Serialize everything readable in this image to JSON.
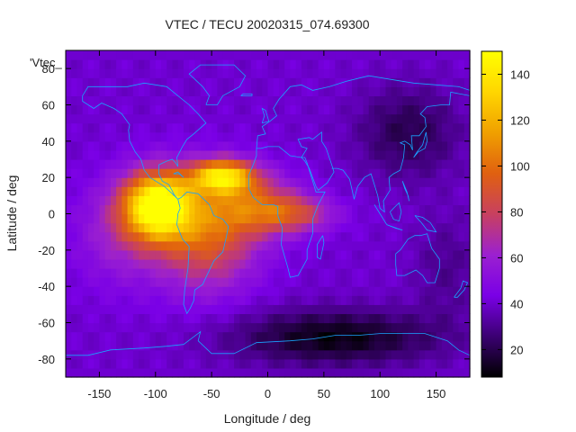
{
  "chart_data": {
    "type": "heatmap",
    "title": "VTEC / TECU 20020315_074.69300",
    "xlabel": "Longitude / deg",
    "ylabel": "Latitude / deg",
    "xlim": [
      -180,
      180
    ],
    "ylim": [
      -90,
      90
    ],
    "x_ticks": [
      "-150",
      "-100",
      "-50",
      "0",
      "50",
      "100",
      "150"
    ],
    "y_ticks": [
      "80",
      "60",
      "40",
      "20",
      "0",
      "-20",
      "-40",
      "-60",
      "-80"
    ],
    "legend_entries": [
      "'Vtec_"
    ],
    "colorbar": {
      "range": [
        8,
        150
      ],
      "ticks": [
        "20",
        "40",
        "60",
        "80",
        "100",
        "120",
        "140"
      ],
      "palette": [
        "#000000",
        "#3b0072",
        "#7a00e6",
        "#9b20d0",
        "#c84060",
        "#e06010",
        "#f0a000",
        "#ffd600",
        "#ffff00"
      ]
    },
    "coastline_color": "#1aa3ff",
    "grid": false,
    "features": {
      "background_level": 40,
      "peaks": [
        {
          "lon": -98,
          "lat": 5,
          "level": 150
        },
        {
          "lon": -38,
          "lat": 22,
          "level": 130
        },
        {
          "lon": -55,
          "lat": -8,
          "level": 112
        }
      ],
      "low_regions": [
        {
          "lon": 60,
          "lat": -65,
          "level": 12
        },
        {
          "lon": 120,
          "lat": 45,
          "level": 18
        }
      ]
    }
  }
}
